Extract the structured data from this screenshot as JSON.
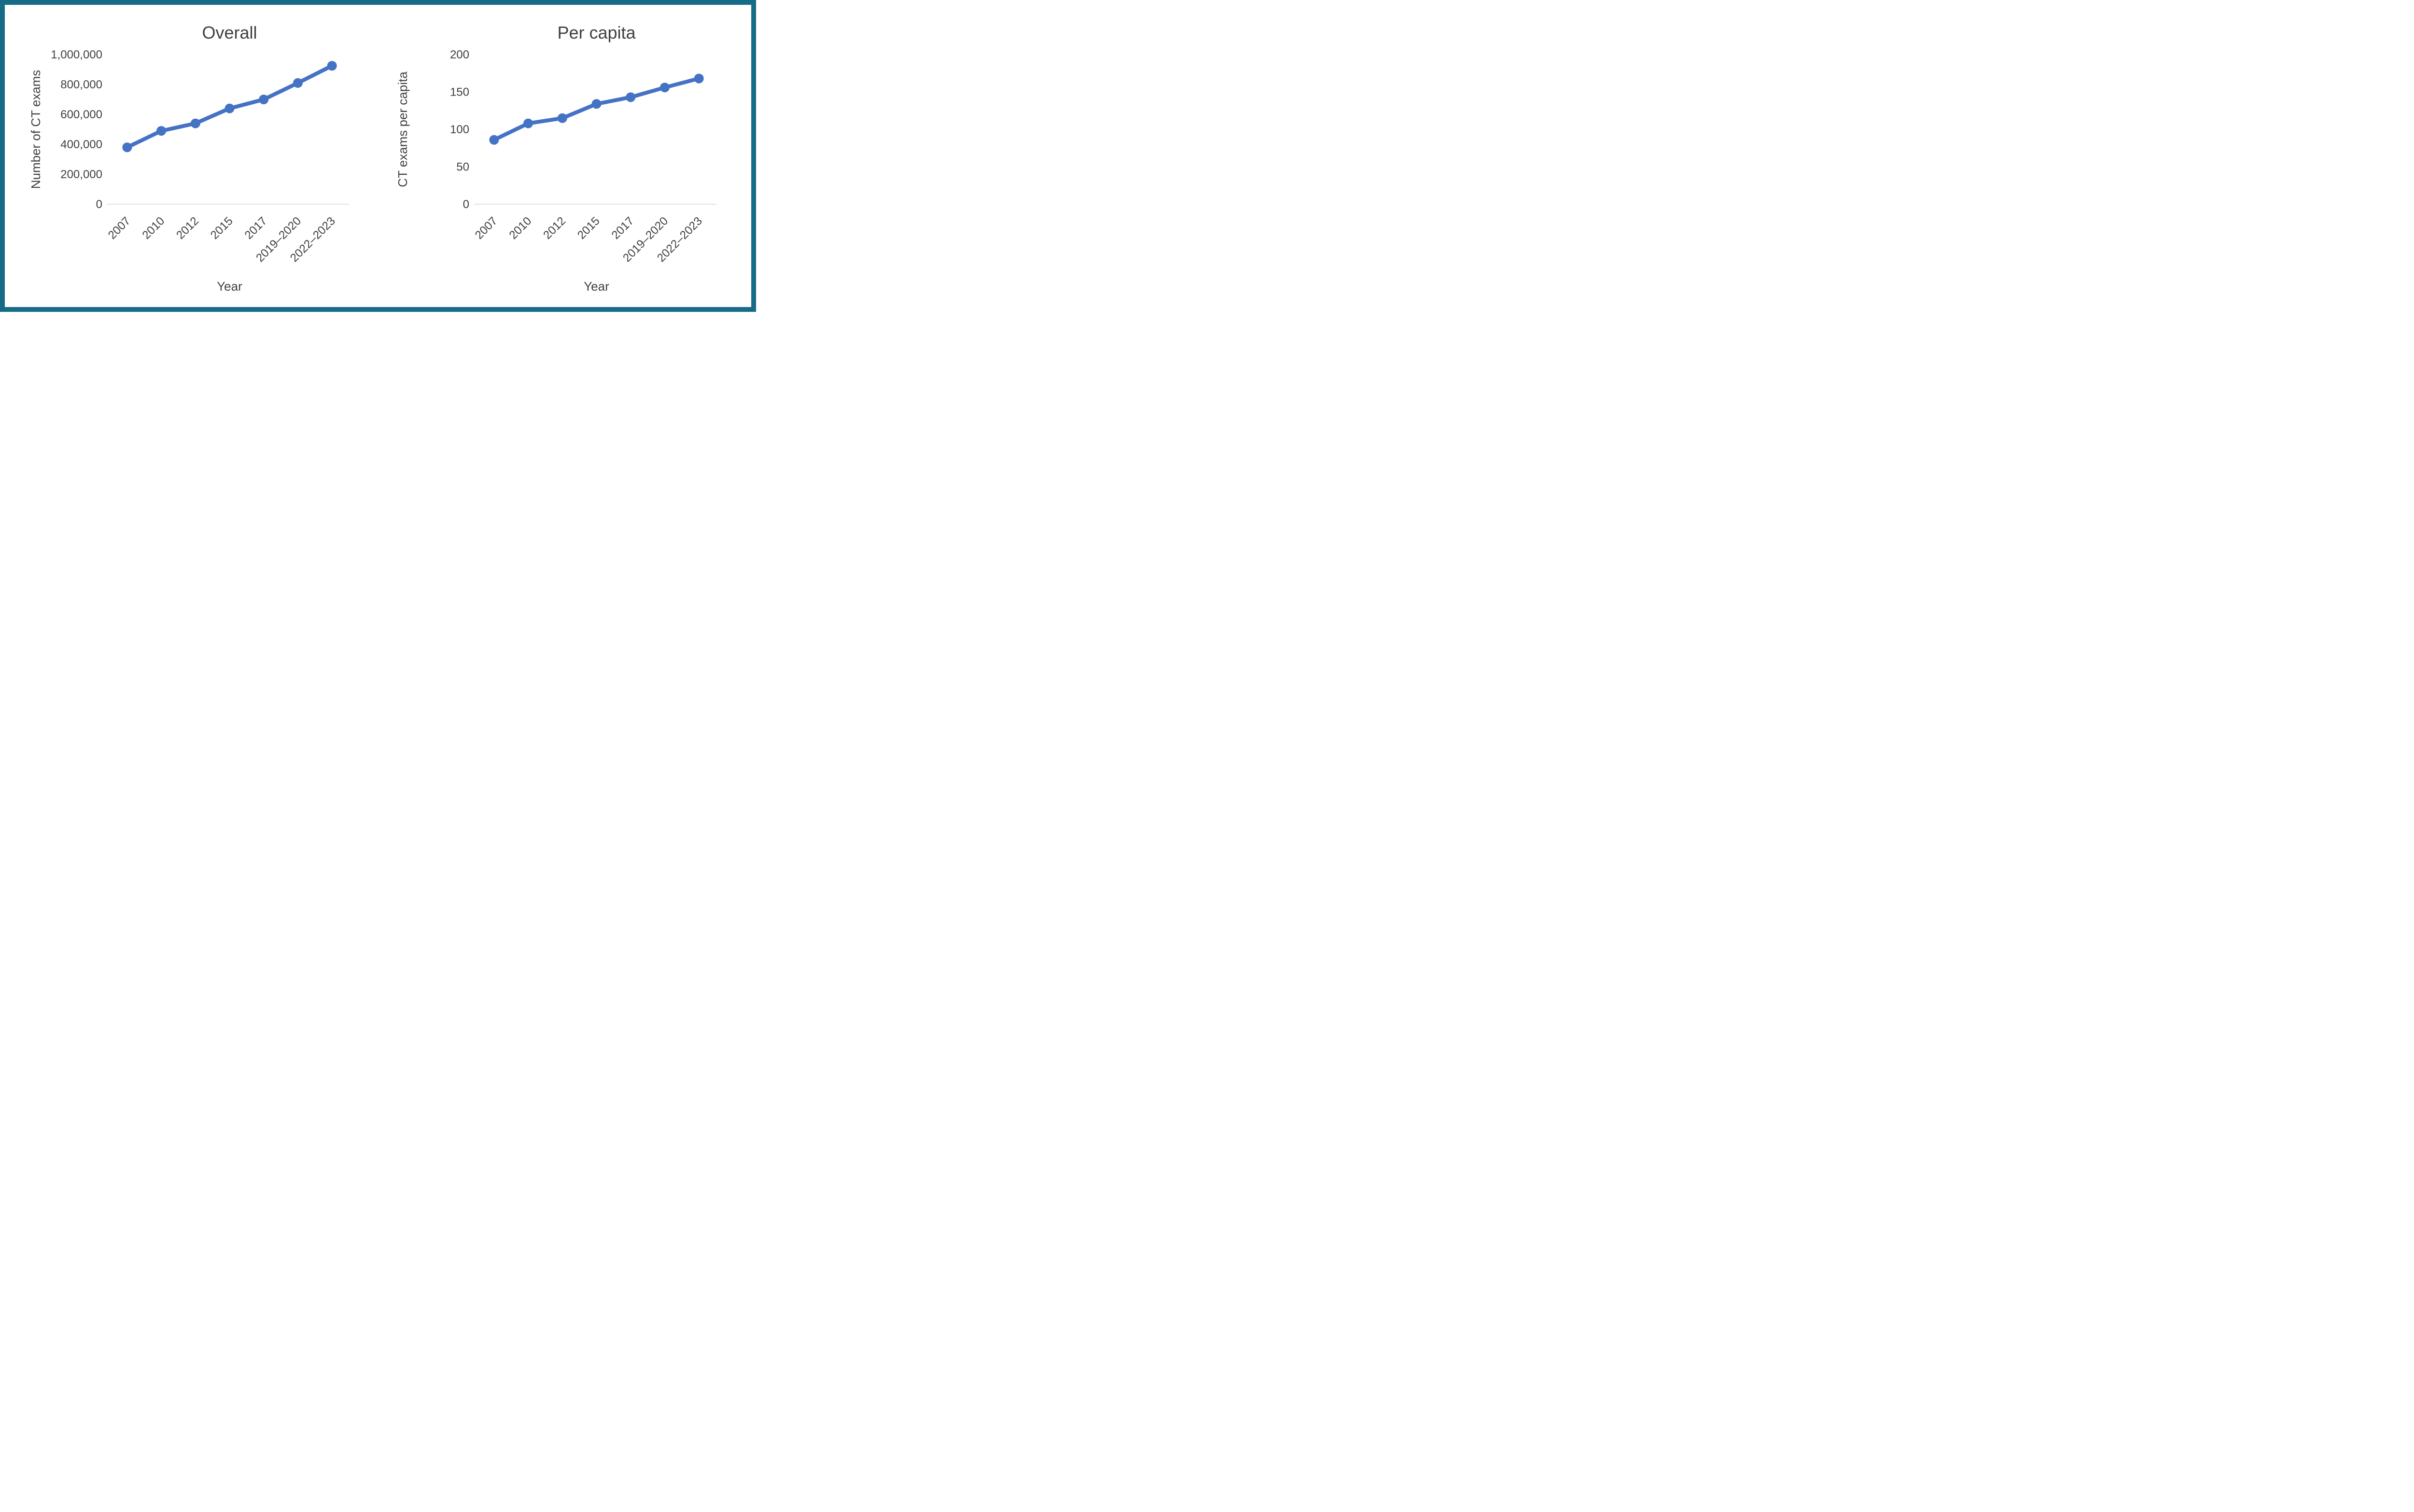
{
  "page": {
    "background": "#ffffff",
    "border_color": "#176b87",
    "text_color": "#404040",
    "axis_line_color": "#d9d9d9"
  },
  "chart_data": [
    {
      "type": "line",
      "title": "Overall",
      "xlabel": "Year",
      "ylabel": "Number of CT exams",
      "categories": [
        "2007",
        "2010",
        "2012",
        "2015",
        "2017",
        "2019–2020",
        "2022–2023"
      ],
      "series": [
        {
          "name": "Number of CT exams",
          "values": [
            380000,
            490000,
            540000,
            640000,
            700000,
            810000,
            925000
          ]
        }
      ],
      "ylim": [
        0,
        1000000
      ],
      "yticks": [
        {
          "value": 0,
          "label": "0"
        },
        {
          "value": 200000,
          "label": "200,000"
        },
        {
          "value": 400000,
          "label": "400,000"
        },
        {
          "value": 600000,
          "label": "600,000"
        },
        {
          "value": 800000,
          "label": "800,000"
        },
        {
          "value": 1000000,
          "label": "1,000,000"
        }
      ],
      "line_color": "#4472C4",
      "marker": "circle",
      "grid": false,
      "legend": "none"
    },
    {
      "type": "line",
      "title": "Per capita",
      "xlabel": "Year",
      "ylabel": "CT exams per capita",
      "categories": [
        "2007",
        "2010",
        "2012",
        "2015",
        "2017",
        "2019–2020",
        "2022–2023"
      ],
      "series": [
        {
          "name": "CT exams per capita",
          "values": [
            86,
            108,
            115,
            134,
            143,
            156,
            168
          ]
        }
      ],
      "ylim": [
        0,
        200
      ],
      "yticks": [
        {
          "value": 0,
          "label": "0"
        },
        {
          "value": 50,
          "label": "50"
        },
        {
          "value": 100,
          "label": "100"
        },
        {
          "value": 150,
          "label": "150"
        },
        {
          "value": 200,
          "label": "200"
        }
      ],
      "line_color": "#4472C4",
      "marker": "circle",
      "grid": false,
      "legend": "none"
    }
  ]
}
